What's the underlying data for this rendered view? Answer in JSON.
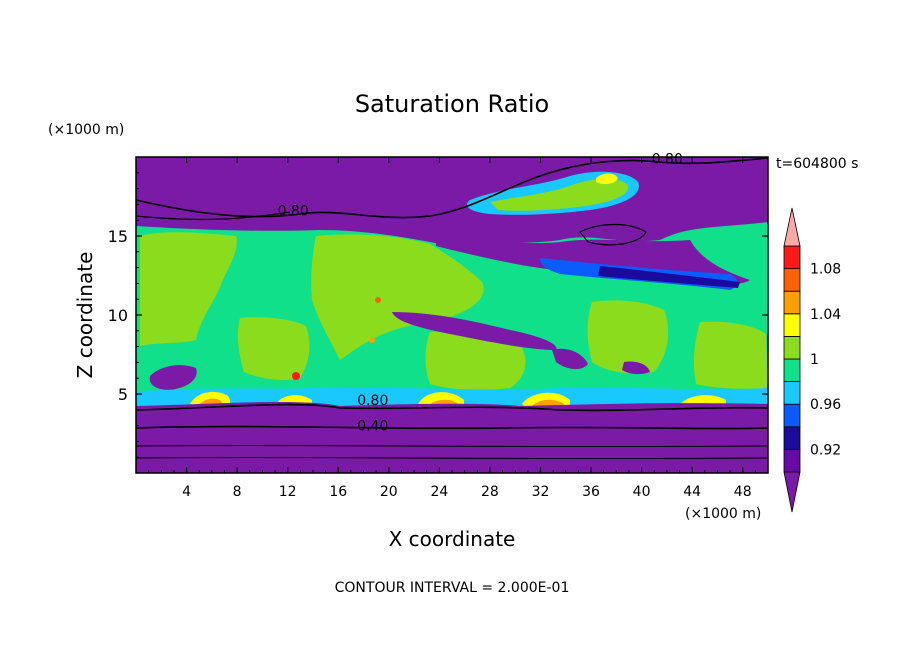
{
  "chart_data": {
    "type": "heatmap",
    "title": "Saturation Ratio",
    "xlabel": "X coordinate",
    "ylabel": "Z coordinate",
    "x_unit": "(×1000 m)",
    "y_unit": "(×1000 m)",
    "time_label": "t=604800 s",
    "footer": "CONTOUR INTERVAL = 2.000E-01",
    "xlim": [
      0,
      50
    ],
    "ylim": [
      0,
      20
    ],
    "x_ticks": [
      4,
      8,
      12,
      16,
      20,
      24,
      28,
      32,
      36,
      40,
      44,
      48
    ],
    "y_ticks": [
      5,
      10,
      15
    ],
    "colorbar": {
      "levels": [
        0.9,
        0.92,
        0.94,
        0.96,
        0.98,
        1.0,
        1.02,
        1.04,
        1.06,
        1.08,
        1.1
      ],
      "labels": [
        "0.92",
        "0.96",
        "1",
        "1.04",
        "1.08"
      ],
      "label_values": [
        0.92,
        0.96,
        1.0,
        1.04,
        1.08
      ],
      "colors": [
        "#6a0aa6",
        "#1a0a9e",
        "#0a5cff",
        "#19c8ff",
        "#10e08a",
        "#8cdc1e",
        "#ffff00",
        "#ffa000",
        "#ff6000",
        "#ff1a1a"
      ],
      "under_color": "#7a1aa6",
      "over_color": "#ffa8a8"
    },
    "contour_labels": [
      {
        "text": "0.80",
        "x": 11.2,
        "y": 16.3
      },
      {
        "text": "0.80",
        "x": 40.8,
        "y": 19.6
      },
      {
        "text": "0.80",
        "x": 17.5,
        "y": 4.3
      },
      {
        "text": "0.40",
        "x": 17.5,
        "y": 2.7
      }
    ]
  }
}
